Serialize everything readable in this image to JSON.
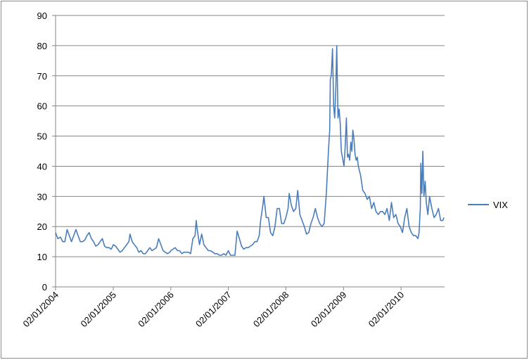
{
  "chart_data": {
    "type": "line",
    "x": [
      "02/01/2004",
      "16/01/2004",
      "02/02/2004",
      "16/02/2004",
      "01/03/2004",
      "15/03/2004",
      "29/03/2004",
      "12/04/2004",
      "26/04/2004",
      "10/05/2004",
      "24/05/2004",
      "07/06/2004",
      "21/06/2004",
      "05/07/2004",
      "19/07/2004",
      "02/08/2004",
      "16/08/2004",
      "30/08/2004",
      "13/09/2004",
      "27/09/2004",
      "11/10/2004",
      "25/10/2004",
      "08/11/2004",
      "22/11/2004",
      "06/12/2004",
      "20/12/2004",
      "03/01/2005",
      "17/01/2005",
      "31/01/2005",
      "14/02/2005",
      "28/02/2005",
      "14/03/2005",
      "28/03/2005",
      "11/04/2005",
      "18/04/2005",
      "02/05/2005",
      "16/05/2005",
      "31/05/2005",
      "13/06/2005",
      "27/06/2005",
      "11/07/2005",
      "25/07/2005",
      "08/08/2005",
      "22/08/2005",
      "05/09/2005",
      "19/09/2005",
      "03/10/2005",
      "17/10/2005",
      "31/10/2005",
      "14/11/2005",
      "28/11/2005",
      "12/12/2005",
      "27/12/2005",
      "02/01/2006",
      "16/01/2006",
      "30/01/2006",
      "13/02/2006",
      "27/02/2006",
      "13/03/2006",
      "27/03/2006",
      "10/04/2006",
      "24/04/2006",
      "08/05/2006",
      "22/05/2006",
      "05/06/2006",
      "12/06/2006",
      "19/06/2006",
      "03/07/2006",
      "17/07/2006",
      "31/07/2006",
      "14/08/2006",
      "28/08/2006",
      "11/09/2006",
      "25/09/2006",
      "09/10/2006",
      "23/10/2006",
      "06/11/2006",
      "20/11/2006",
      "04/12/2006",
      "18/12/2006",
      "02/01/2007",
      "16/01/2007",
      "30/01/2007",
      "13/02/2007",
      "27/02/2007",
      "13/03/2007",
      "27/03/2007",
      "10/04/2007",
      "24/04/2007",
      "08/05/2007",
      "22/05/2007",
      "05/06/2007",
      "19/06/2007",
      "03/07/2007",
      "17/07/2007",
      "26/07/2007",
      "09/08/2007",
      "16/08/2007",
      "30/08/2007",
      "13/09/2007",
      "27/09/2007",
      "11/10/2007",
      "25/10/2007",
      "08/11/2007",
      "22/11/2007",
      "06/12/2007",
      "20/12/2007",
      "02/01/2008",
      "16/01/2008",
      "23/01/2008",
      "06/02/2008",
      "20/02/2008",
      "05/03/2008",
      "17/03/2008",
      "31/03/2008",
      "14/04/2008",
      "28/04/2008",
      "12/05/2008",
      "26/05/2008",
      "09/06/2008",
      "23/06/2008",
      "07/07/2008",
      "21/07/2008",
      "04/08/2008",
      "18/08/2008",
      "01/09/2008",
      "15/09/2008",
      "29/09/2008",
      "06/10/2008",
      "10/10/2008",
      "16/10/2008",
      "24/10/2008",
      "31/10/2008",
      "07/11/2008",
      "14/11/2008",
      "20/11/2008",
      "28/11/2008",
      "05/12/2008",
      "12/12/2008",
      "19/12/2008",
      "29/12/2008",
      "05/01/2009",
      "12/01/2009",
      "20/01/2009",
      "27/01/2009",
      "03/02/2009",
      "10/02/2009",
      "17/02/2009",
      "24/02/2009",
      "02/03/2009",
      "09/03/2009",
      "16/03/2009",
      "23/03/2009",
      "30/03/2009",
      "06/04/2009",
      "20/04/2009",
      "04/05/2009",
      "18/05/2009",
      "01/06/2009",
      "15/06/2009",
      "29/06/2009",
      "13/07/2009",
      "27/07/2009",
      "10/08/2009",
      "24/08/2009",
      "07/09/2009",
      "21/09/2009",
      "05/10/2009",
      "19/10/2009",
      "02/11/2009",
      "16/11/2009",
      "30/11/2009",
      "14/12/2009",
      "28/12/2009",
      "11/01/2010",
      "25/01/2010",
      "08/02/2010",
      "22/02/2010",
      "08/03/2010",
      "22/03/2010",
      "05/04/2010",
      "19/04/2010",
      "26/04/2010",
      "04/05/2010",
      "07/05/2010",
      "14/05/2010",
      "20/05/2010",
      "27/05/2010",
      "04/06/2010",
      "11/06/2010",
      "21/06/2010",
      "02/07/2010",
      "16/07/2010",
      "30/07/2010",
      "13/08/2010",
      "27/08/2010",
      "10/09/2010",
      "24/09/2010",
      "01/10/2010"
    ],
    "series": [
      {
        "name": "VIX",
        "color": "#4a7ebb",
        "values": [
          18,
          16,
          16.5,
          15,
          15,
          19,
          17,
          15,
          17,
          19,
          17,
          15,
          15,
          15.5,
          17,
          18,
          16,
          15,
          13.5,
          14,
          15,
          16,
          13.5,
          13,
          13,
          12.5,
          14,
          13.5,
          12.5,
          11.5,
          12,
          13,
          14,
          15,
          17.5,
          15,
          14,
          13,
          11.5,
          12,
          11,
          11,
          12,
          13,
          12,
          12.5,
          13,
          16,
          14,
          12,
          11.5,
          11,
          11.5,
          12,
          12.5,
          13,
          12,
          12,
          11,
          11.5,
          11.5,
          11.5,
          11,
          16,
          17,
          22,
          19,
          14,
          17.5,
          14,
          13,
          12,
          12,
          11.5,
          11,
          11,
          10.5,
          10.5,
          11,
          10.5,
          12,
          10.5,
          10.5,
          10.5,
          18.5,
          16,
          13.5,
          12.5,
          13,
          13,
          13.5,
          14,
          15,
          15,
          17,
          22,
          27,
          30,
          23,
          23,
          18,
          17,
          20,
          26,
          26,
          21,
          21,
          23,
          26,
          31,
          27,
          25,
          26,
          32,
          24,
          22,
          20,
          17.5,
          18,
          21,
          23,
          26,
          23,
          21,
          20,
          21,
          31,
          46,
          52,
          69,
          70,
          79,
          60,
          56,
          66,
          80,
          56,
          59,
          54,
          45,
          42,
          40,
          46,
          56,
          43,
          44,
          42,
          48,
          45,
          52,
          49,
          44,
          42,
          43,
          40,
          37,
          32,
          31,
          29,
          30,
          26,
          28,
          25,
          24,
          25,
          25,
          24,
          26,
          22,
          28,
          23,
          24,
          21,
          20,
          18,
          23,
          26,
          20,
          18,
          17,
          17,
          16,
          18,
          26,
          41,
          31,
          45,
          30,
          35,
          28,
          24,
          30,
          26,
          23,
          24,
          26,
          22,
          22,
          23
        ]
      }
    ],
    "xlim": [
      "02/01/2004",
      "05/10/2010"
    ],
    "xticks": [
      "02/01/2004",
      "02/01/2005",
      "02/01/2006",
      "02/01/2007",
      "02/01/2008",
      "02/01/2009",
      "02/01/2010"
    ],
    "ylim": [
      0,
      90
    ],
    "yticks": [
      0,
      10,
      20,
      30,
      40,
      50,
      60,
      70,
      80,
      90
    ],
    "grid": true,
    "legend": "right"
  }
}
